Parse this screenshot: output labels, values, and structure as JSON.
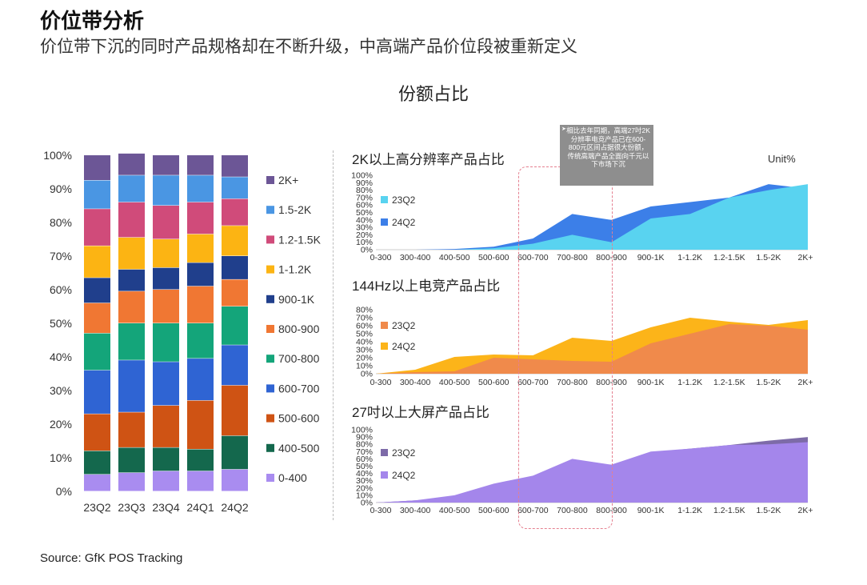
{
  "header": {
    "title": "价位带分析",
    "subtitle": "价位带下沉的同时产品规格却在不断升级，中高端产品价位段被重新定义",
    "chart_heading": "份额占比",
    "unit": "Unit%",
    "source": "Source: GfK POS Tracking"
  },
  "callout": {
    "arrow": "➤",
    "text": "相比去年同期，高端27吋2K分辨率电竞产品已在600-800元区间占据很大份额，传统高端产品全面向千元以下市场下沉"
  },
  "colors": {
    "0-400": "#a98cf0",
    "400-500": "#14684d",
    "500-600": "#cf5314",
    "600-700": "#2f64d3",
    "700-800": "#14a57a",
    "800-900": "#f07733",
    "900-1K": "#203f8c",
    "1-1.2K": "#fcb413",
    "1.2-1.5K": "#d04b7a",
    "1.5-2K": "#4a96e3",
    "2K+": "#6c5696",
    "panel1_23Q2": "#59d3f0",
    "panel1_24Q2": "#3c7fe8",
    "panel2_23Q2": "#f08a4b",
    "panel2_24Q2": "#fcb419",
    "panel3_23Q2": "#7d6ba8",
    "panel3_24Q2": "#a486eb"
  },
  "chart_data": [
    {
      "type": "bar",
      "stacked": true,
      "categories": [
        "23Q2",
        "23Q3",
        "23Q4",
        "24Q1",
        "24Q2"
      ],
      "ylim": [
        0,
        100
      ],
      "yticks": [
        "0%",
        "10%",
        "20%",
        "30%",
        "40%",
        "50%",
        "60%",
        "70%",
        "80%",
        "90%",
        "100%"
      ],
      "legend_position": "right",
      "series": [
        {
          "name": "0-400",
          "values": [
            5,
            5.5,
            6,
            6,
            6.5
          ]
        },
        {
          "name": "400-500",
          "values": [
            7,
            7.5,
            7,
            6.5,
            10
          ]
        },
        {
          "name": "500-600",
          "values": [
            11,
            10.5,
            12.5,
            14.5,
            15
          ]
        },
        {
          "name": "600-700",
          "values": [
            13,
            15.5,
            13,
            12.5,
            12
          ]
        },
        {
          "name": "700-800",
          "values": [
            11,
            11,
            11.5,
            10.5,
            11.5
          ]
        },
        {
          "name": "800-900",
          "values": [
            9,
            9.5,
            10,
            11,
            8
          ]
        },
        {
          "name": "900-1K",
          "values": [
            7.5,
            6.5,
            6.5,
            7,
            7
          ]
        },
        {
          "name": "1-1.2K",
          "values": [
            9.5,
            9.5,
            8.5,
            8.5,
            9
          ]
        },
        {
          "name": "1.2-1.5K",
          "values": [
            11,
            10.5,
            10,
            9.5,
            8
          ]
        },
        {
          "name": "1.5-2K",
          "values": [
            8.5,
            8,
            9,
            8,
            6.5
          ]
        },
        {
          "name": "2K+",
          "values": [
            7.5,
            6.5,
            6,
            6,
            6.5
          ]
        }
      ]
    },
    {
      "type": "area",
      "title": "2K以上高分辨率产品占比",
      "categories": [
        "0-300",
        "300-400",
        "400-500",
        "500-600",
        "600-700",
        "700-800",
        "800-900",
        "900-1K",
        "1-1.2K",
        "1.2-1.5K",
        "1.5-2K",
        "2K+"
      ],
      "ylim": [
        0,
        100
      ],
      "yticks": [
        "0%",
        "10%",
        "20%",
        "30%",
        "40%",
        "50%",
        "60%",
        "70%",
        "80%",
        "90%",
        "100%"
      ],
      "legend_position": "left",
      "series": [
        {
          "name": "23Q2",
          "values": [
            0,
            0,
            0,
            2,
            8,
            20,
            10,
            42,
            48,
            70,
            80,
            88
          ]
        },
        {
          "name": "24Q2",
          "values": [
            0,
            0,
            1,
            4,
            15,
            48,
            40,
            58,
            64,
            70,
            88,
            82
          ]
        }
      ]
    },
    {
      "type": "area",
      "title": "144Hz以上电竞产品占比",
      "categories": [
        "0-300",
        "300-400",
        "400-500",
        "500-600",
        "600-700",
        "700-800",
        "800-900",
        "900-1K",
        "1-1.2K",
        "1.2-1.5K",
        "1.5-2K",
        "2K+"
      ],
      "ylim": [
        0,
        80
      ],
      "yticks": [
        "0%",
        "10%",
        "20%",
        "30%",
        "40%",
        "50%",
        "60%",
        "70%",
        "80%"
      ],
      "legend_position": "left",
      "series": [
        {
          "name": "23Q2",
          "values": [
            0,
            2,
            3,
            20,
            18,
            16,
            15,
            38,
            50,
            62,
            60,
            55
          ]
        },
        {
          "name": "24Q2",
          "values": [
            0,
            5,
            21,
            24,
            23,
            45,
            41,
            58,
            70,
            65,
            61,
            67
          ]
        }
      ]
    },
    {
      "type": "area",
      "title": "27吋以上大屏产品占比",
      "categories": [
        "0-300",
        "300-400",
        "400-500",
        "500-600",
        "600-700",
        "700-800",
        "800-900",
        "900-1K",
        "1-1.2K",
        "1.2-1.5K",
        "1.5-2K",
        "2K+"
      ],
      "ylim": [
        0,
        100
      ],
      "yticks": [
        "0%",
        "10%",
        "20%",
        "30%",
        "40%",
        "50%",
        "60%",
        "70%",
        "80%",
        "90%",
        "100%"
      ],
      "legend_position": "left",
      "series": [
        {
          "name": "23Q2",
          "values": [
            0,
            3,
            7,
            22,
            32,
            37,
            52,
            69,
            74,
            79,
            85,
            90
          ]
        },
        {
          "name": "24Q2",
          "values": [
            0,
            3,
            10,
            26,
            37,
            60,
            52,
            70,
            74,
            79,
            80,
            83
          ]
        }
      ]
    }
  ]
}
